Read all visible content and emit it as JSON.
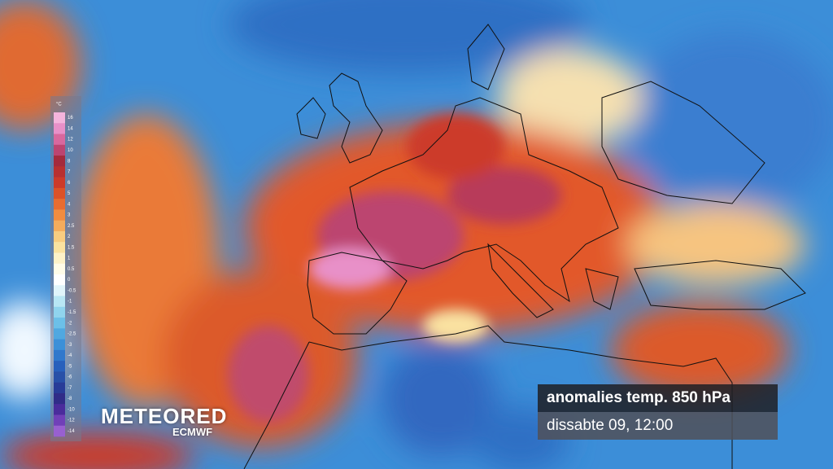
{
  "legend": {
    "unit": "°C",
    "ticks": [
      {
        "label": "16",
        "color": "#f4b4dc"
      },
      {
        "label": "14",
        "color": "#e890c8"
      },
      {
        "label": "12",
        "color": "#d8689e"
      },
      {
        "label": "10",
        "color": "#bc4470"
      },
      {
        "label": "8",
        "color": "#a42a3c"
      },
      {
        "label": "7",
        "color": "#b83030"
      },
      {
        "label": "6",
        "color": "#cc3a2a"
      },
      {
        "label": "5",
        "color": "#dc5228"
      },
      {
        "label": "4",
        "color": "#e86c30"
      },
      {
        "label": "3",
        "color": "#f08c40"
      },
      {
        "label": "2.5",
        "color": "#f4ac5c"
      },
      {
        "label": "2",
        "color": "#f8cc80"
      },
      {
        "label": "1.5",
        "color": "#fae2a0"
      },
      {
        "label": "1",
        "color": "#fdf2c8"
      },
      {
        "label": "0.5",
        "color": "#fffce8"
      },
      {
        "label": "0",
        "color": "#ffffff"
      },
      {
        "label": "-0.5",
        "color": "#e0f4fa"
      },
      {
        "label": "-1",
        "color": "#b8e6f4"
      },
      {
        "label": "-1.5",
        "color": "#90d4ee"
      },
      {
        "label": "-2",
        "color": "#6cc0e8"
      },
      {
        "label": "-2.5",
        "color": "#50a8e0"
      },
      {
        "label": "-3",
        "color": "#3c90d8"
      },
      {
        "label": "-4",
        "color": "#3078cc"
      },
      {
        "label": "-5",
        "color": "#2860bc"
      },
      {
        "label": "-6",
        "color": "#2850a8"
      },
      {
        "label": "-7",
        "color": "#283c98"
      },
      {
        "label": "-8",
        "color": "#302c88"
      },
      {
        "label": "-10",
        "color": "#4a2c9c"
      },
      {
        "label": "-12",
        "color": "#7040b8"
      },
      {
        "label": "-14",
        "color": "#9860d0"
      }
    ]
  },
  "logo": {
    "brand": "METEORED",
    "source": "ECMWF"
  },
  "info": {
    "title": "anomalies temp. 850 hPa",
    "time": "dissabte 09, 12:00"
  }
}
